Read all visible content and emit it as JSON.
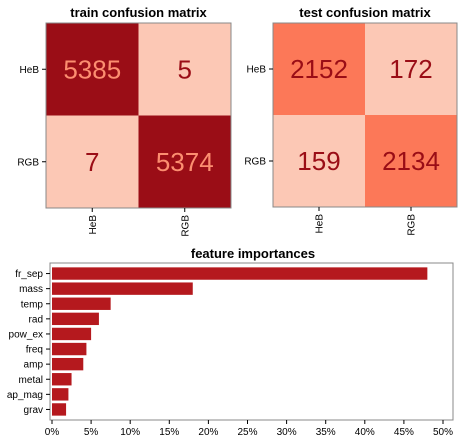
{
  "chart_data": [
    {
      "type": "heatmap",
      "title": "train confusion matrix",
      "row_labels": [
        "HeB",
        "RGB"
      ],
      "col_labels": [
        "HeB",
        "RGB"
      ],
      "values": [
        [
          5385,
          5
        ],
        [
          7,
          5374
        ]
      ],
      "cell_colors": [
        [
          "#9a0d16",
          "#fcc8b5"
        ],
        [
          "#fcc8b5",
          "#9a0d16"
        ]
      ],
      "text_colors": [
        [
          "#fc8e70",
          "#9a0d16"
        ],
        [
          "#9a0d16",
          "#fc8e70"
        ]
      ]
    },
    {
      "type": "heatmap",
      "title": "test confusion matrix",
      "row_labels": [
        "HeB",
        "RGB"
      ],
      "col_labels": [
        "HeB",
        "RGB"
      ],
      "values": [
        [
          2152,
          172
        ],
        [
          159,
          2134
        ]
      ],
      "cell_colors": [
        [
          "#fc7858",
          "#fcc8b5"
        ],
        [
          "#fcc8b5",
          "#fc7858"
        ]
      ],
      "text_colors": [
        [
          "#9a0d16",
          "#9a0d16"
        ],
        [
          "#9a0d16",
          "#9a0d16"
        ]
      ]
    },
    {
      "type": "bar",
      "orientation": "horizontal",
      "title": "feature importances",
      "categories": [
        "fr_sep",
        "mass",
        "temp",
        "rad",
        "pow_ex",
        "freq",
        "amp",
        "metal",
        "ap_mag",
        "grav"
      ],
      "values": [
        48.0,
        18.0,
        7.5,
        6.0,
        5.0,
        4.4,
        4.0,
        2.5,
        2.1,
        1.8
      ],
      "xlim": [
        0,
        50
      ],
      "xticks": [
        "0%",
        "5%",
        "10%",
        "15%",
        "20%",
        "25%",
        "30%",
        "35%",
        "40%",
        "45%",
        "50%"
      ],
      "bar_color": "#b5191e"
    }
  ]
}
